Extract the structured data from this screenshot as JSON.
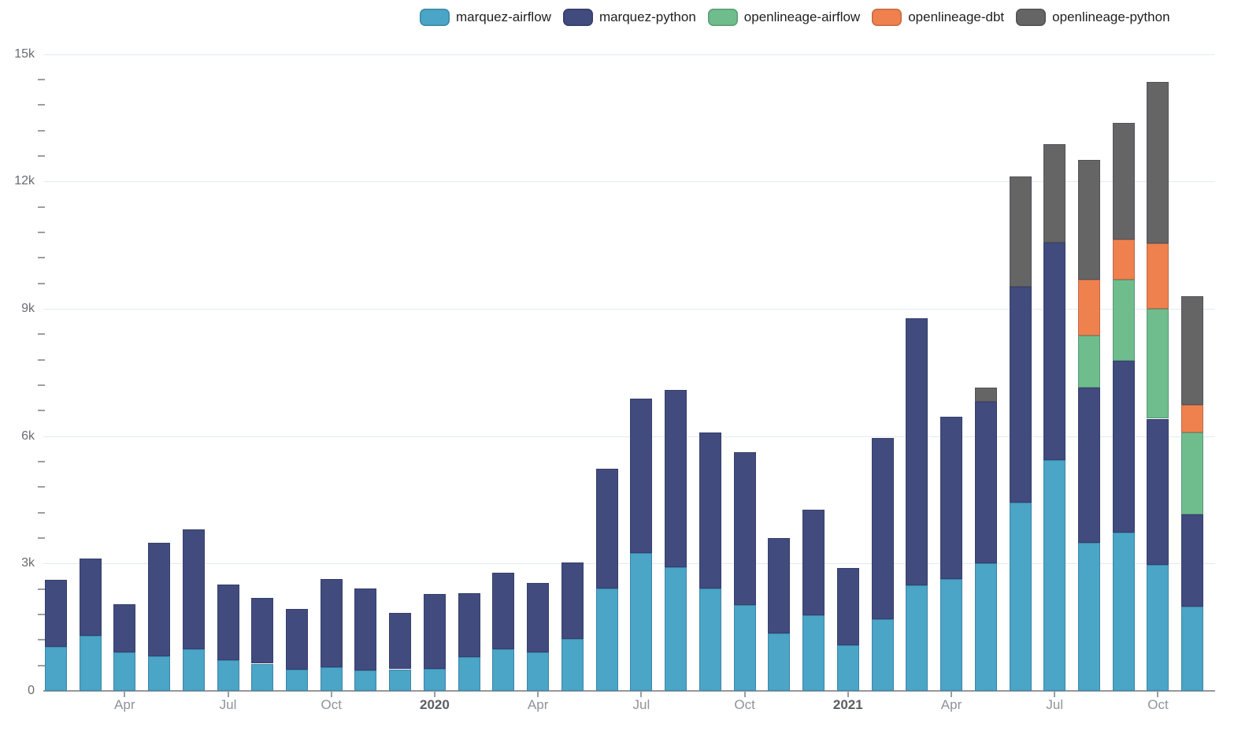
{
  "legend": {
    "items": [
      {
        "label": "marquez-airflow",
        "color": "#4aa5c7"
      },
      {
        "label": "marquez-python",
        "color": "#414b7d"
      },
      {
        "label": "openlineage-airflow",
        "color": "#6fbd8d"
      },
      {
        "label": "openlineage-dbt",
        "color": "#ef814e"
      },
      {
        "label": "openlineage-python",
        "color": "#656565"
      }
    ]
  },
  "chart_data": {
    "type": "bar",
    "stacked": true,
    "title": "",
    "grid": true,
    "legend_position": "top",
    "x": [
      "2019-02",
      "2019-03",
      "2019-04",
      "2019-05",
      "2019-06",
      "2019-07",
      "2019-08",
      "2019-09",
      "2019-10",
      "2019-11",
      "2019-12",
      "2020-01",
      "2020-02",
      "2020-03",
      "2020-04",
      "2020-05",
      "2020-06",
      "2020-07",
      "2020-08",
      "2020-09",
      "2020-10",
      "2020-11",
      "2020-12",
      "2021-01",
      "2021-02",
      "2021-03",
      "2021-04",
      "2021-05",
      "2021-06",
      "2021-07",
      "2021-08",
      "2021-09",
      "2021-10",
      "2021-11"
    ],
    "x_tick_labels": [
      {
        "index": 2,
        "label": "Apr",
        "bold": false
      },
      {
        "index": 5,
        "label": "Jul",
        "bold": false
      },
      {
        "index": 8,
        "label": "Oct",
        "bold": false
      },
      {
        "index": 11,
        "label": "2020",
        "bold": true
      },
      {
        "index": 14,
        "label": "Apr",
        "bold": false
      },
      {
        "index": 17,
        "label": "Jul",
        "bold": false
      },
      {
        "index": 20,
        "label": "Oct",
        "bold": false
      },
      {
        "index": 23,
        "label": "2021",
        "bold": true
      },
      {
        "index": 26,
        "label": "Apr",
        "bold": false
      },
      {
        "index": 29,
        "label": "Jul",
        "bold": false
      },
      {
        "index": 32,
        "label": "Oct",
        "bold": false
      }
    ],
    "y_axis": {
      "min": 0,
      "max": 15000,
      "major_step": 3000,
      "minor_step": 600,
      "tick_labels": [
        "0",
        "3k",
        "6k",
        "9k",
        "12k",
        "15k"
      ]
    },
    "series": [
      {
        "name": "marquez-airflow",
        "color": "#4aa5c7",
        "values": [
          1030,
          1290,
          900,
          820,
          990,
          730,
          640,
          510,
          560,
          480,
          510,
          520,
          800,
          990,
          900,
          1230,
          2410,
          3240,
          2910,
          2410,
          2030,
          1360,
          1780,
          1080,
          1690,
          2480,
          2640,
          3010,
          4440,
          5430,
          3480,
          3720,
          2970,
          1990
        ]
      },
      {
        "name": "marquez-python",
        "color": "#414b7d",
        "values": [
          1580,
          1820,
          1140,
          2660,
          2820,
          1770,
          1550,
          1420,
          2070,
          1930,
          1330,
          1760,
          1500,
          1800,
          1650,
          1790,
          2830,
          3640,
          4170,
          3670,
          3600,
          2240,
          2480,
          1810,
          4270,
          6300,
          3810,
          3800,
          5080,
          5130,
          3660,
          4050,
          3440,
          2170
        ]
      },
      {
        "name": "openlineage-airflow",
        "color": "#6fbd8d",
        "values": [
          0,
          0,
          0,
          0,
          0,
          0,
          0,
          0,
          0,
          0,
          0,
          0,
          0,
          0,
          0,
          0,
          0,
          0,
          0,
          0,
          0,
          0,
          0,
          0,
          0,
          0,
          0,
          0,
          0,
          0,
          1230,
          1910,
          2590,
          1930
        ]
      },
      {
        "name": "openlineage-dbt",
        "color": "#ef814e",
        "values": [
          0,
          0,
          0,
          0,
          0,
          0,
          0,
          0,
          0,
          0,
          0,
          0,
          0,
          0,
          0,
          0,
          0,
          0,
          0,
          0,
          0,
          0,
          0,
          0,
          0,
          0,
          0,
          0,
          0,
          0,
          1310,
          950,
          1530,
          650
        ]
      },
      {
        "name": "openlineage-python",
        "color": "#656565",
        "values": [
          0,
          0,
          0,
          0,
          0,
          0,
          0,
          0,
          0,
          0,
          0,
          0,
          0,
          0,
          0,
          0,
          0,
          0,
          0,
          0,
          0,
          0,
          0,
          0,
          0,
          0,
          0,
          340,
          2600,
          2320,
          2830,
          2750,
          3810,
          2560
        ]
      }
    ]
  }
}
